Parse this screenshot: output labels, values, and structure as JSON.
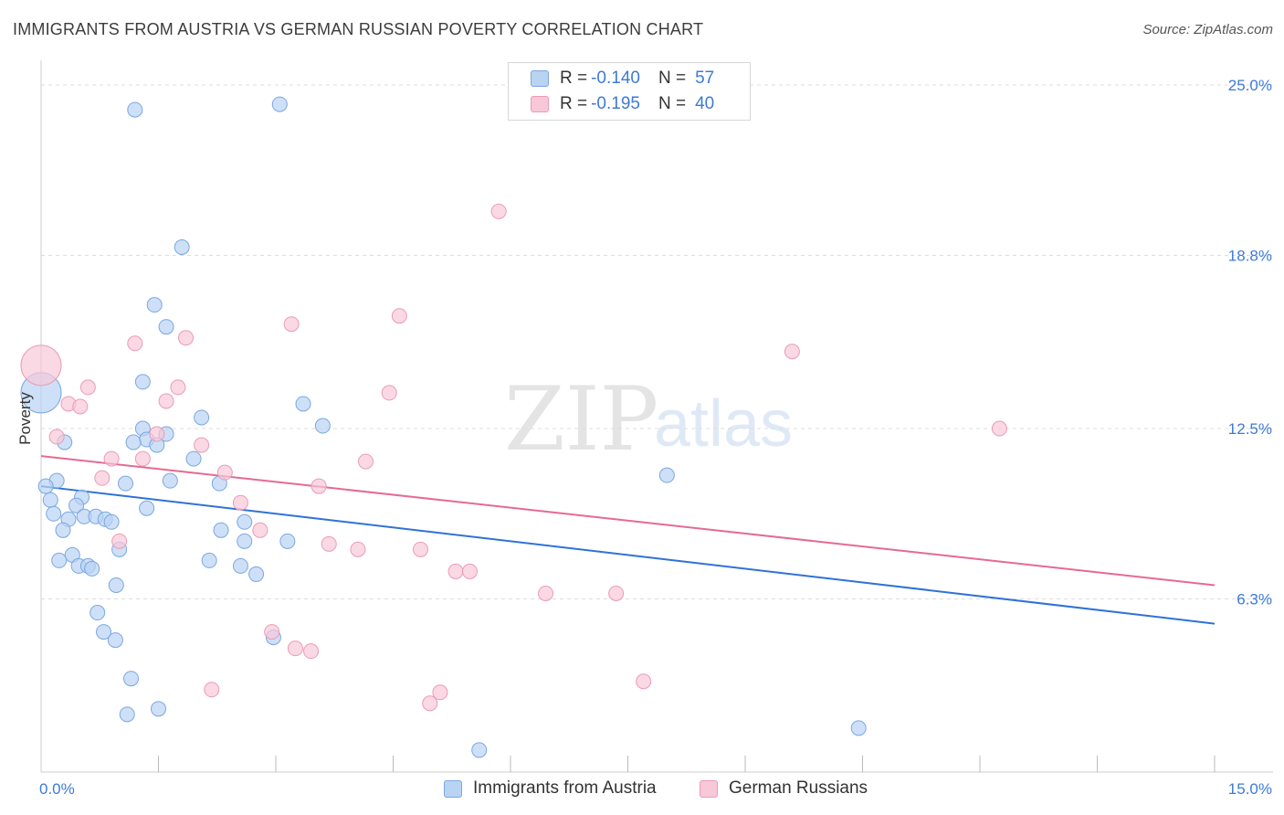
{
  "header": {
    "title": "IMMIGRANTS FROM AUSTRIA VS GERMAN RUSSIAN POVERTY CORRELATION CHART",
    "source": "Source: ZipAtlas.com"
  },
  "watermark": {
    "zip": "ZIP",
    "atlas": "atlas"
  },
  "legend": {
    "rows": [
      {
        "r_label": "R =",
        "r_value": "-0.140",
        "n_label": "N =",
        "n_value": "57"
      },
      {
        "r_label": "R =",
        "r_value": "-0.195",
        "n_label": "N =",
        "n_value": "40"
      }
    ]
  },
  "colors": {
    "blue_fill": "#b9d3f3",
    "blue_stroke": "#7aa7e0",
    "blue_line": "#2f72d6",
    "pink_fill": "#f8c8d8",
    "pink_stroke": "#eb9bb6",
    "pink_line": "#e56a92",
    "tick_text": "#3d7ad6",
    "grid": "#dddddd"
  },
  "chart_data": {
    "type": "scatter",
    "title": "IMMIGRANTS FROM AUSTRIA VS GERMAN RUSSIAN POVERTY CORRELATION CHART",
    "xlabel": "",
    "ylabel": "Poverty",
    "xlim": [
      0,
      15
    ],
    "ylim": [
      0,
      25.5
    ],
    "x_tick_labels": [
      "0.0%",
      "15.0%"
    ],
    "y_ticks": [
      {
        "value": 6.3,
        "label": "6.3%"
      },
      {
        "value": 12.5,
        "label": "12.5%"
      },
      {
        "value": 18.8,
        "label": "18.8%"
      },
      {
        "value": 25.0,
        "label": "25.0%"
      }
    ],
    "x_minor_ticks": [
      1.5,
      3.0,
      4.5,
      6.0,
      7.5,
      9.0,
      10.5,
      12.0,
      13.5,
      15.0
    ],
    "series": [
      {
        "name": "Immigrants from Austria",
        "color": "#b9d3f3",
        "trend": {
          "x": [
            0,
            15
          ],
          "y": [
            10.4,
            5.4
          ]
        },
        "points": [
          {
            "x": 0.0,
            "y": 13.8,
            "big": true
          },
          {
            "x": 1.2,
            "y": 24.1
          },
          {
            "x": 3.05,
            "y": 24.3
          },
          {
            "x": 1.8,
            "y": 19.1
          },
          {
            "x": 1.45,
            "y": 17.0
          },
          {
            "x": 1.6,
            "y": 16.2
          },
          {
            "x": 1.3,
            "y": 14.2
          },
          {
            "x": 2.05,
            "y": 12.9
          },
          {
            "x": 3.35,
            "y": 13.4
          },
          {
            "x": 3.6,
            "y": 12.6
          },
          {
            "x": 1.3,
            "y": 12.5
          },
          {
            "x": 1.6,
            "y": 12.3
          },
          {
            "x": 1.35,
            "y": 12.1
          },
          {
            "x": 1.18,
            "y": 12.0
          },
          {
            "x": 1.48,
            "y": 11.9
          },
          {
            "x": 0.3,
            "y": 12.0
          },
          {
            "x": 1.95,
            "y": 11.4
          },
          {
            "x": 0.2,
            "y": 10.6
          },
          {
            "x": 1.65,
            "y": 10.6
          },
          {
            "x": 1.08,
            "y": 10.5
          },
          {
            "x": 2.28,
            "y": 10.5
          },
          {
            "x": 0.06,
            "y": 10.4
          },
          {
            "x": 8.0,
            "y": 10.8
          },
          {
            "x": 0.52,
            "y": 10.0
          },
          {
            "x": 0.12,
            "y": 9.9
          },
          {
            "x": 0.45,
            "y": 9.7
          },
          {
            "x": 1.35,
            "y": 9.6
          },
          {
            "x": 0.16,
            "y": 9.4
          },
          {
            "x": 0.35,
            "y": 9.2
          },
          {
            "x": 0.55,
            "y": 9.3
          },
          {
            "x": 0.7,
            "y": 9.3
          },
          {
            "x": 0.82,
            "y": 9.2
          },
          {
            "x": 0.9,
            "y": 9.1
          },
          {
            "x": 2.6,
            "y": 9.1
          },
          {
            "x": 0.28,
            "y": 8.8
          },
          {
            "x": 2.3,
            "y": 8.8
          },
          {
            "x": 3.15,
            "y": 8.4
          },
          {
            "x": 2.6,
            "y": 8.4
          },
          {
            "x": 1.0,
            "y": 8.1
          },
          {
            "x": 0.4,
            "y": 7.9
          },
          {
            "x": 0.23,
            "y": 7.7
          },
          {
            "x": 2.15,
            "y": 7.7
          },
          {
            "x": 0.48,
            "y": 7.5
          },
          {
            "x": 0.6,
            "y": 7.5
          },
          {
            "x": 0.65,
            "y": 7.4
          },
          {
            "x": 2.55,
            "y": 7.5
          },
          {
            "x": 2.75,
            "y": 7.2
          },
          {
            "x": 0.96,
            "y": 6.8
          },
          {
            "x": 0.72,
            "y": 5.8
          },
          {
            "x": 0.8,
            "y": 5.1
          },
          {
            "x": 0.95,
            "y": 4.8
          },
          {
            "x": 2.97,
            "y": 4.9
          },
          {
            "x": 1.15,
            "y": 3.4
          },
          {
            "x": 1.5,
            "y": 2.3
          },
          {
            "x": 1.1,
            "y": 2.1
          },
          {
            "x": 10.45,
            "y": 1.6
          },
          {
            "x": 5.6,
            "y": 0.8
          }
        ]
      },
      {
        "name": "German Russians",
        "color": "#f8c8d8",
        "trend": {
          "x": [
            0,
            15
          ],
          "y": [
            11.5,
            6.8
          ]
        },
        "points": [
          {
            "x": 0.0,
            "y": 14.8,
            "big": true
          },
          {
            "x": 5.85,
            "y": 20.4
          },
          {
            "x": 4.58,
            "y": 16.6
          },
          {
            "x": 3.2,
            "y": 16.3
          },
          {
            "x": 1.85,
            "y": 15.8
          },
          {
            "x": 1.2,
            "y": 15.6
          },
          {
            "x": 9.6,
            "y": 15.3
          },
          {
            "x": 0.6,
            "y": 14.0
          },
          {
            "x": 1.75,
            "y": 14.0
          },
          {
            "x": 4.45,
            "y": 13.8
          },
          {
            "x": 1.6,
            "y": 13.5
          },
          {
            "x": 0.35,
            "y": 13.4
          },
          {
            "x": 0.5,
            "y": 13.3
          },
          {
            "x": 12.25,
            "y": 12.5
          },
          {
            "x": 1.48,
            "y": 12.3
          },
          {
            "x": 0.2,
            "y": 12.2
          },
          {
            "x": 2.05,
            "y": 11.9
          },
          {
            "x": 1.3,
            "y": 11.4
          },
          {
            "x": 0.9,
            "y": 11.4
          },
          {
            "x": 4.15,
            "y": 11.3
          },
          {
            "x": 2.35,
            "y": 10.9
          },
          {
            "x": 0.78,
            "y": 10.7
          },
          {
            "x": 3.55,
            "y": 10.4
          },
          {
            "x": 2.55,
            "y": 9.8
          },
          {
            "x": 2.8,
            "y": 8.8
          },
          {
            "x": 1.0,
            "y": 8.4
          },
          {
            "x": 3.68,
            "y": 8.3
          },
          {
            "x": 4.05,
            "y": 8.1
          },
          {
            "x": 4.85,
            "y": 8.1
          },
          {
            "x": 5.3,
            "y": 7.3
          },
          {
            "x": 5.48,
            "y": 7.3
          },
          {
            "x": 6.45,
            "y": 6.5
          },
          {
            "x": 7.35,
            "y": 6.5
          },
          {
            "x": 2.95,
            "y": 5.1
          },
          {
            "x": 3.25,
            "y": 4.5
          },
          {
            "x": 3.45,
            "y": 4.4
          },
          {
            "x": 7.7,
            "y": 3.3
          },
          {
            "x": 2.18,
            "y": 3.0
          },
          {
            "x": 5.1,
            "y": 2.9
          },
          {
            "x": 4.97,
            "y": 2.5
          }
        ]
      }
    ]
  }
}
